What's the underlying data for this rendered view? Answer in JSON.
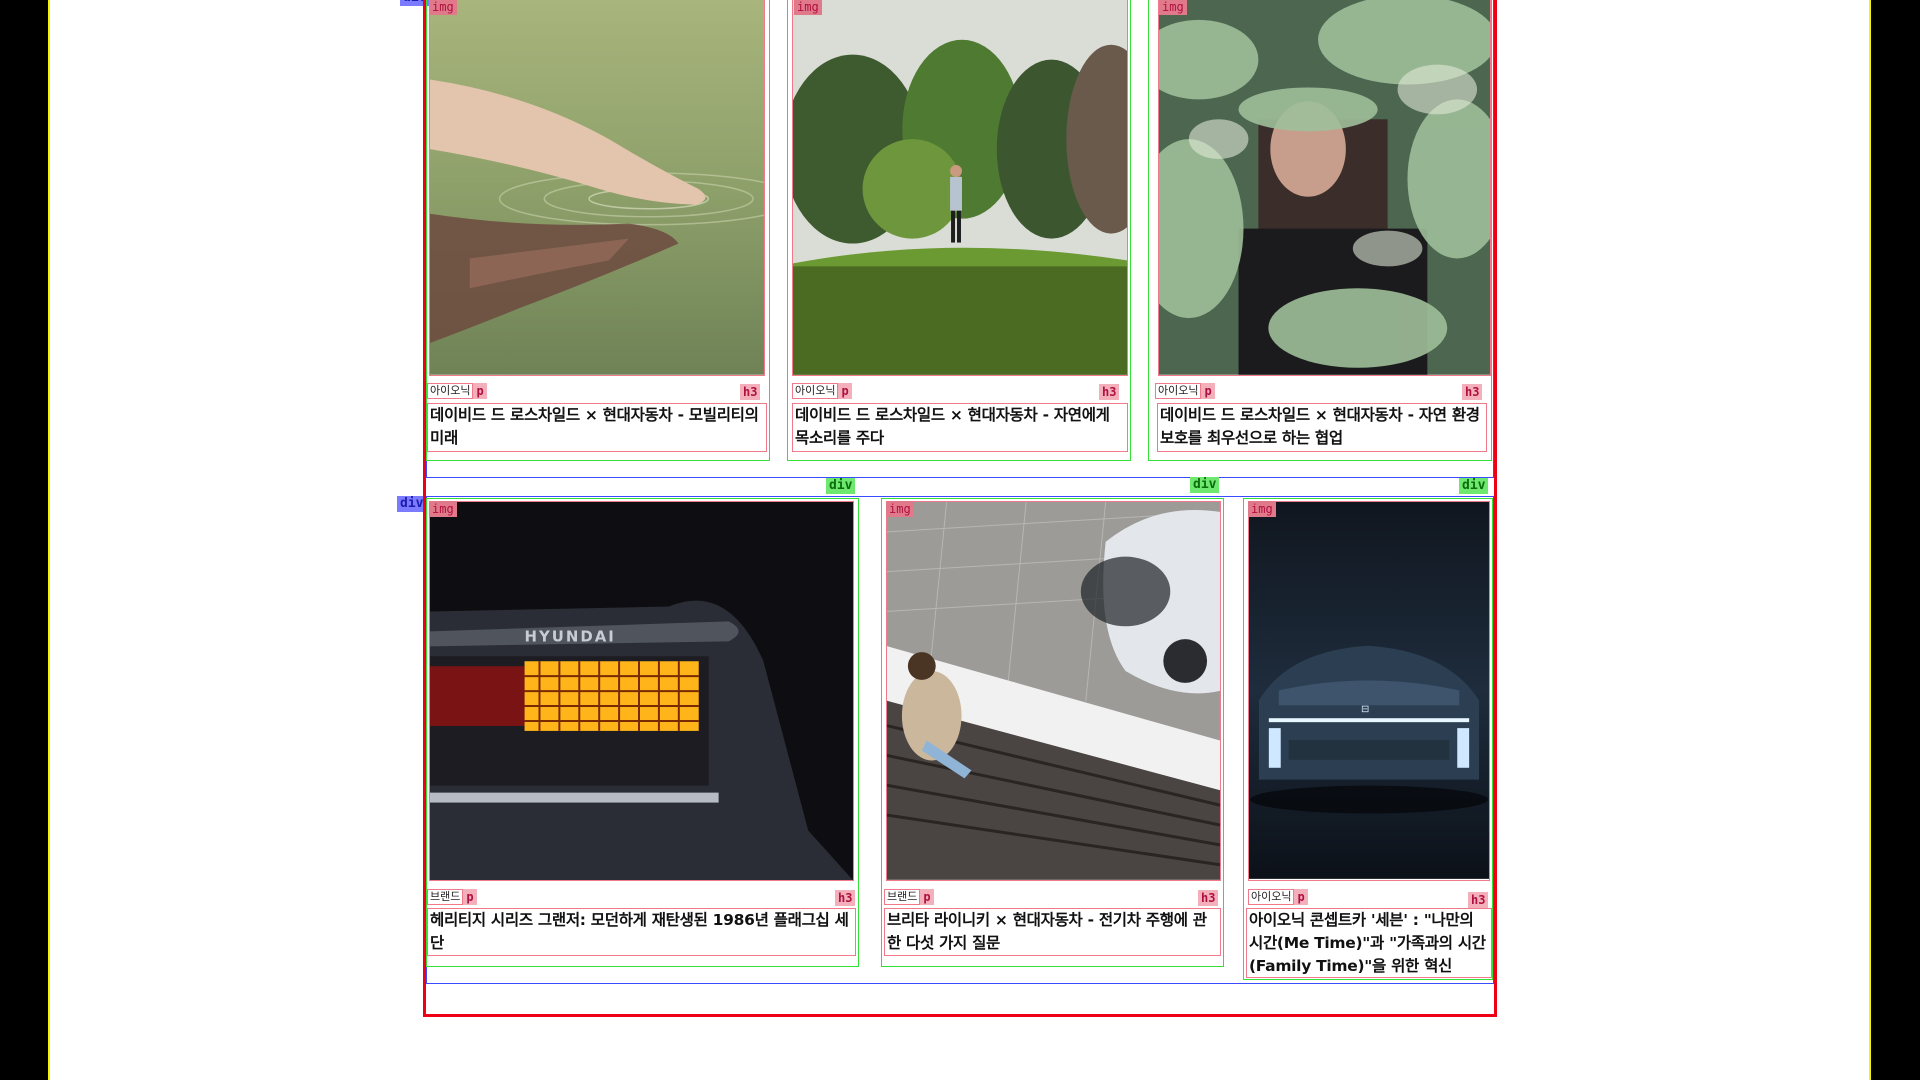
{
  "overlay_labels": {
    "img": "img",
    "p": "p",
    "h3": "h3",
    "div": "div"
  },
  "cards": [
    {
      "category": "아이오닉",
      "title": "데이비드 드 로스차일드 × 현대자동차 - 모빌리티의 미래",
      "image": "hand-touching-water"
    },
    {
      "category": "아이오닉",
      "title": "데이비드 드 로스차일드 × 현대자동차 - 자연에게 목소리를 주다",
      "image": "man-on-hedge-mound"
    },
    {
      "category": "아이오닉",
      "title": "데이비드 드 로스차일드 × 현대자동차 - 자연 환경 보호를 최우선으로 하는 협업",
      "image": "man-behind-foliage"
    },
    {
      "category": "브랜드",
      "title": "헤리티지 시리즈 그랜저: 모던하게 재탄생된 1986년 플래그십 세단",
      "image": "grandeur-taillight"
    },
    {
      "category": "브랜드",
      "title": "브리타 라이니키 × 현대자동차 - 전기차 주행에 관한 다섯 가지 질문",
      "image": "woman-on-stairs-with-car"
    },
    {
      "category": "아이오닉",
      "title": "아이오닉 콘셉트카 '세븐' : \"나만의 시간(Me Time)\"과 \"가족과의 시간(Family Time)\"을 위한 혁신",
      "image": "concept-car-front"
    }
  ]
}
